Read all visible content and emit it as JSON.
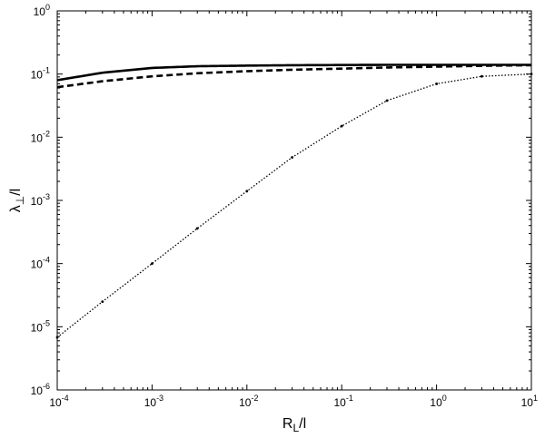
{
  "chart_data": {
    "type": "line",
    "title": "",
    "xlabel": "R_L/l",
    "ylabel": "λ_⊥/l",
    "x_scale": "log",
    "y_scale": "log",
    "xlim": [
      0.0001,
      10
    ],
    "ylim": [
      1e-06,
      1
    ],
    "grid": false,
    "legend": "none",
    "x_ticks": [
      {
        "value": 0.0001,
        "base": "10",
        "exp": "-4"
      },
      {
        "value": 0.001,
        "base": "10",
        "exp": "-3"
      },
      {
        "value": 0.01,
        "base": "10",
        "exp": "-2"
      },
      {
        "value": 0.1,
        "base": "10",
        "exp": "-1"
      },
      {
        "value": 1,
        "base": "10",
        "exp": "0"
      },
      {
        "value": 10,
        "base": "10",
        "exp": "1"
      }
    ],
    "y_ticks": [
      {
        "value": 1e-06,
        "base": "10",
        "exp": "-6"
      },
      {
        "value": 1e-05,
        "base": "10",
        "exp": "-5"
      },
      {
        "value": 0.0001,
        "base": "10",
        "exp": "-4"
      },
      {
        "value": 0.001,
        "base": "10",
        "exp": "-3"
      },
      {
        "value": 0.01,
        "base": "10",
        "exp": "-2"
      },
      {
        "value": 0.1,
        "base": "10",
        "exp": "-1"
      },
      {
        "value": 1,
        "base": "10",
        "exp": "0"
      }
    ],
    "series": [
      {
        "style": "solid",
        "color": "#000000",
        "x": [
          0.0001,
          0.0003,
          0.001,
          0.003,
          0.01,
          0.03,
          0.1,
          0.3,
          1,
          3,
          10
        ],
        "y": [
          0.08,
          0.105,
          0.125,
          0.133,
          0.136,
          0.138,
          0.139,
          0.14,
          0.14,
          0.14,
          0.14
        ]
      },
      {
        "style": "dashed",
        "color": "#000000",
        "x": [
          0.0001,
          0.0003,
          0.001,
          0.003,
          0.01,
          0.03,
          0.1,
          0.3,
          1,
          3,
          10
        ],
        "y": [
          0.062,
          0.077,
          0.092,
          0.103,
          0.111,
          0.117,
          0.122,
          0.127,
          0.131,
          0.135,
          0.138
        ]
      },
      {
        "style": "dotted",
        "color": "#000000",
        "x": [
          0.0001,
          0.0003,
          0.001,
          0.003,
          0.01,
          0.03,
          0.1,
          0.3,
          1,
          3,
          10
        ],
        "y": [
          6.8e-06,
          2.5e-05,
          0.0001,
          0.00036,
          0.0014,
          0.0048,
          0.015,
          0.038,
          0.07,
          0.092,
          0.1
        ]
      }
    ]
  }
}
